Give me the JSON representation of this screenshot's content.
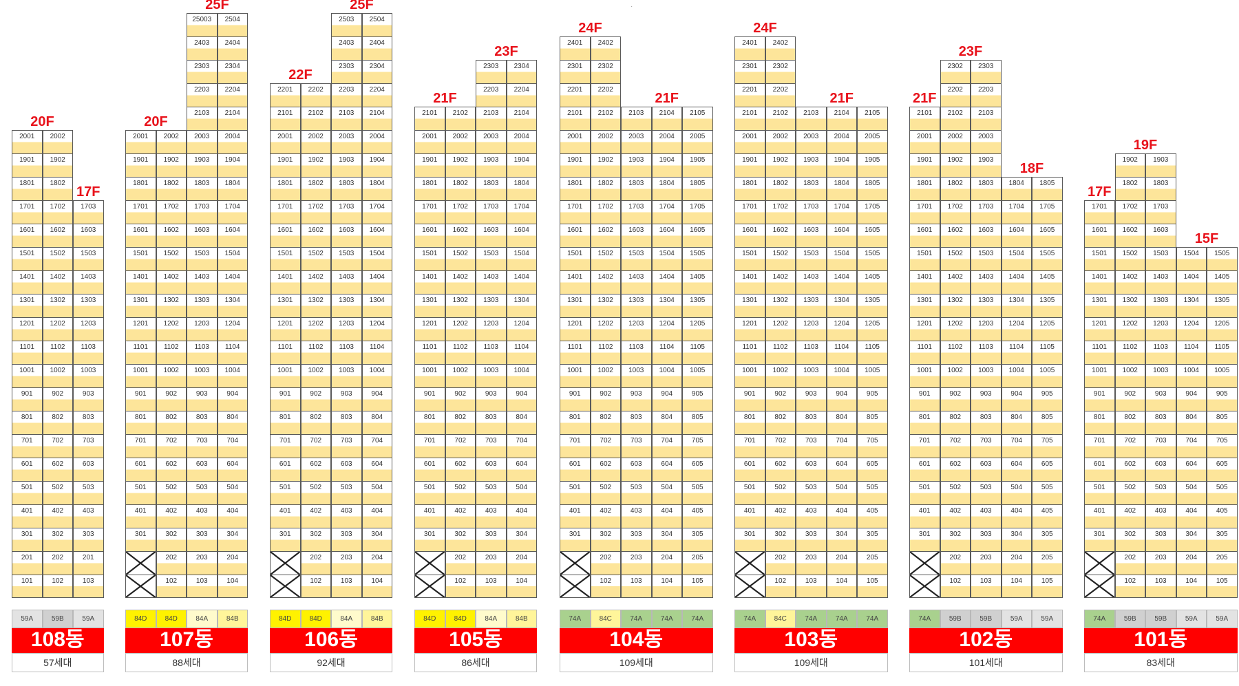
{
  "buildings": [
    {
      "name": "108동",
      "households": "57세대",
      "types": [
        {
          "label": "59A",
          "color": "#e3e3e3"
        },
        {
          "label": "59B",
          "color": "#d0d0d0"
        },
        {
          "label": "59A",
          "color": "#e3e3e3"
        }
      ],
      "floor_labels": [
        {
          "text": "20F",
          "over": [
            0,
            1
          ]
        },
        {
          "text": "17F",
          "over": [
            2
          ]
        }
      ],
      "columns": [
        {
          "line": "01",
          "top": 20,
          "bottom": 1,
          "cut": []
        },
        {
          "line": "02",
          "top": 20,
          "bottom": 1,
          "cut": []
        },
        {
          "line": "03",
          "top": 17,
          "bottom": 1,
          "cut": [],
          "relabel": {
            "2": "201"
          }
        }
      ]
    },
    {
      "name": "107동",
      "households": "88세대",
      "types": [
        {
          "label": "84D",
          "color": "#fff200"
        },
        {
          "label": "84D",
          "color": "#fff200"
        },
        {
          "label": "84A",
          "color": "#fffbcc"
        },
        {
          "label": "84B",
          "color": "#fff59a"
        }
      ],
      "floor_labels": [
        {
          "text": "20F",
          "over": [
            0,
            1
          ]
        },
        {
          "text": "25F",
          "over": [
            2,
            3
          ]
        }
      ],
      "columns": [
        {
          "line": "01",
          "top": 20,
          "bottom": 3,
          "cut": [
            1,
            2
          ]
        },
        {
          "line": "02",
          "top": 20,
          "bottom": 1,
          "cut": []
        },
        {
          "line": "03",
          "top": 25,
          "bottom": 1,
          "cut": [],
          "relabel": {
            "25": "25003"
          }
        },
        {
          "line": "04",
          "top": 25,
          "bottom": 1,
          "cut": []
        }
      ]
    },
    {
      "name": "106동",
      "households": "92세대",
      "types": [
        {
          "label": "84D",
          "color": "#fff200"
        },
        {
          "label": "84D",
          "color": "#fff200"
        },
        {
          "label": "84A",
          "color": "#fffbcc"
        },
        {
          "label": "84B",
          "color": "#fff59a"
        }
      ],
      "floor_labels": [
        {
          "text": "22F",
          "over": [
            0,
            1
          ]
        },
        {
          "text": "25F",
          "over": [
            2,
            3
          ]
        }
      ],
      "columns": [
        {
          "line": "01",
          "top": 22,
          "bottom": 3,
          "cut": [
            1,
            2
          ]
        },
        {
          "line": "02",
          "top": 22,
          "bottom": 1,
          "cut": []
        },
        {
          "line": "03",
          "top": 25,
          "bottom": 1,
          "cut": []
        },
        {
          "line": "04",
          "top": 25,
          "bottom": 1,
          "cut": []
        }
      ]
    },
    {
      "name": "105동",
      "households": "86세대",
      "types": [
        {
          "label": "84D",
          "color": "#fff200"
        },
        {
          "label": "84D",
          "color": "#fff200"
        },
        {
          "label": "84A",
          "color": "#fffbcc"
        },
        {
          "label": "84B",
          "color": "#fff59a"
        }
      ],
      "floor_labels": [
        {
          "text": "21F",
          "over": [
            0,
            1
          ]
        },
        {
          "text": "23F",
          "over": [
            2,
            3
          ]
        }
      ],
      "columns": [
        {
          "line": "01",
          "top": 21,
          "bottom": 3,
          "cut": [
            1,
            2
          ]
        },
        {
          "line": "02",
          "top": 21,
          "bottom": 1,
          "cut": []
        },
        {
          "line": "03",
          "top": 23,
          "bottom": 1,
          "cut": []
        },
        {
          "line": "04",
          "top": 23,
          "bottom": 1,
          "cut": []
        }
      ]
    },
    {
      "name": "104동",
      "households": "109세대",
      "types": [
        {
          "label": "74A",
          "color": "#a9d18e"
        },
        {
          "label": "84C",
          "color": "#fff59a"
        },
        {
          "label": "74A",
          "color": "#a9d18e"
        },
        {
          "label": "74A",
          "color": "#a9d18e"
        },
        {
          "label": "74A",
          "color": "#a9d18e"
        }
      ],
      "floor_labels": [
        {
          "text": "24F",
          "over": [
            0,
            1
          ]
        },
        {
          "text": "21F",
          "over": [
            2,
            3,
            4
          ]
        }
      ],
      "columns": [
        {
          "line": "01",
          "top": 24,
          "bottom": 3,
          "cut": [
            1,
            2
          ]
        },
        {
          "line": "02",
          "top": 24,
          "bottom": 1,
          "cut": []
        },
        {
          "line": "03",
          "top": 21,
          "bottom": 1,
          "cut": []
        },
        {
          "line": "04",
          "top": 21,
          "bottom": 1,
          "cut": []
        },
        {
          "line": "05",
          "top": 21,
          "bottom": 1,
          "cut": []
        }
      ]
    },
    {
      "name": "103동",
      "households": "109세대",
      "types": [
        {
          "label": "74A",
          "color": "#a9d18e"
        },
        {
          "label": "84C",
          "color": "#fff59a"
        },
        {
          "label": "74A",
          "color": "#a9d18e"
        },
        {
          "label": "74A",
          "color": "#a9d18e"
        },
        {
          "label": "74A",
          "color": "#a9d18e"
        }
      ],
      "floor_labels": [
        {
          "text": "24F",
          "over": [
            0,
            1
          ]
        },
        {
          "text": "21F",
          "over": [
            2,
            3,
            4
          ]
        }
      ],
      "columns": [
        {
          "line": "01",
          "top": 24,
          "bottom": 3,
          "cut": [
            1,
            2
          ]
        },
        {
          "line": "02",
          "top": 24,
          "bottom": 1,
          "cut": []
        },
        {
          "line": "03",
          "top": 21,
          "bottom": 1,
          "cut": []
        },
        {
          "line": "04",
          "top": 21,
          "bottom": 1,
          "cut": []
        },
        {
          "line": "05",
          "top": 21,
          "bottom": 1,
          "cut": []
        }
      ]
    },
    {
      "name": "102동",
      "households": "101세대",
      "types": [
        {
          "label": "74A",
          "color": "#a9d18e"
        },
        {
          "label": "59B",
          "color": "#d0d0d0"
        },
        {
          "label": "59B",
          "color": "#d0d0d0"
        },
        {
          "label": "59A",
          "color": "#e3e3e3"
        },
        {
          "label": "59A",
          "color": "#e3e3e3"
        }
      ],
      "floor_labels": [
        {
          "text": "21F",
          "over": [
            0
          ]
        },
        {
          "text": "23F",
          "over": [
            1,
            2
          ]
        },
        {
          "text": "18F",
          "over": [
            3,
            4
          ]
        }
      ],
      "columns": [
        {
          "line": "01",
          "top": 21,
          "bottom": 3,
          "cut": [
            1,
            2
          ]
        },
        {
          "line": "02",
          "top": 23,
          "bottom": 1,
          "cut": []
        },
        {
          "line": "03",
          "top": 23,
          "bottom": 1,
          "cut": []
        },
        {
          "line": "04",
          "top": 18,
          "bottom": 1,
          "cut": []
        },
        {
          "line": "05",
          "top": 18,
          "bottom": 1,
          "cut": []
        }
      ]
    },
    {
      "name": "101동",
      "households": "83세대",
      "types": [
        {
          "label": "74A",
          "color": "#a9d18e"
        },
        {
          "label": "59B",
          "color": "#d0d0d0"
        },
        {
          "label": "59B",
          "color": "#d0d0d0"
        },
        {
          "label": "59A",
          "color": "#e3e3e3"
        },
        {
          "label": "59A",
          "color": "#e3e3e3"
        }
      ],
      "floor_labels": [
        {
          "text": "17F",
          "over": [
            0
          ]
        },
        {
          "text": "19F",
          "over": [
            1,
            2
          ]
        },
        {
          "text": "15F",
          "over": [
            3,
            4
          ]
        }
      ],
      "columns": [
        {
          "line": "01",
          "top": 17,
          "bottom": 3,
          "cut": [
            1,
            2
          ]
        },
        {
          "line": "02",
          "top": 19,
          "bottom": 1,
          "cut": []
        },
        {
          "line": "03",
          "top": 19,
          "bottom": 1,
          "cut": []
        },
        {
          "line": "04",
          "top": 15,
          "bottom": 1,
          "cut": []
        },
        {
          "line": "05",
          "top": 15,
          "bottom": 1,
          "cut": []
        }
      ]
    }
  ]
}
